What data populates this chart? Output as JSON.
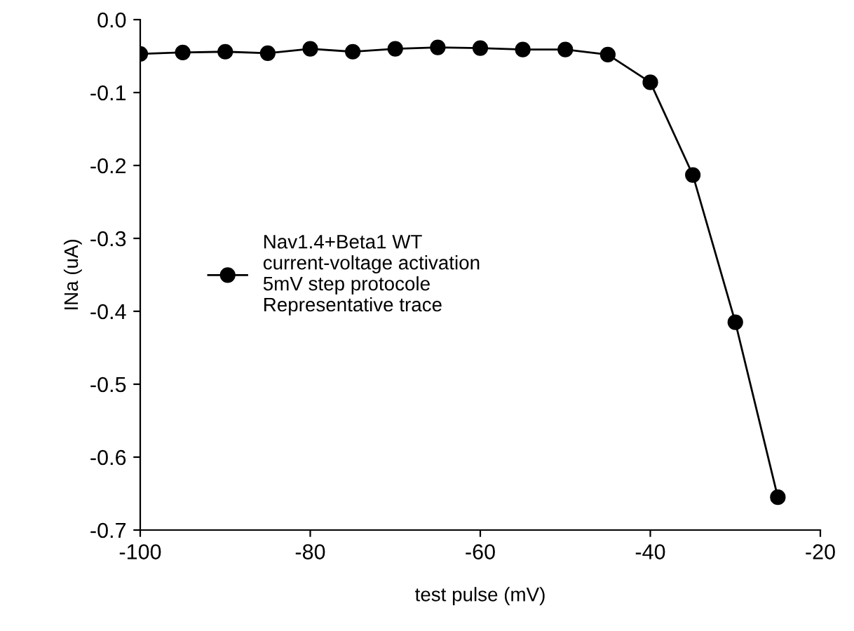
{
  "chart_data": {
    "type": "line",
    "xlabel": "test pulse (mV)",
    "ylabel": "INa (uA)",
    "x": [
      -100,
      -95,
      -90,
      -85,
      -80,
      -75,
      -70,
      -65,
      -60,
      -55,
      -50,
      -45,
      -40,
      -35,
      -30,
      -25
    ],
    "series": [
      {
        "name": "Nav1.4+Beta1 WT\ncurrent-voltage activation\n5mV step protocole\nRepresentative trace",
        "color": "#000000",
        "values": [
          -0.047,
          -0.045,
          -0.044,
          -0.046,
          -0.04,
          -0.044,
          -0.04,
          -0.038,
          -0.039,
          -0.041,
          -0.041,
          -0.048,
          -0.086,
          -0.213,
          -0.415,
          -0.655
        ]
      }
    ],
    "xlim": [
      -100,
      -20
    ],
    "xticks": [
      -100,
      -80,
      -60,
      -40,
      -20
    ],
    "ylim": [
      -0.7,
      0.0
    ],
    "yticks": [
      {
        "value": -0.7,
        "label": "-0.7"
      },
      {
        "value": -0.6,
        "label": "-0.6"
      },
      {
        "value": -0.5,
        "label": "-0.5"
      },
      {
        "value": -0.4,
        "label": "-0.4"
      },
      {
        "value": -0.3,
        "label": "-0.3"
      },
      {
        "value": -0.2,
        "label": "-0.2"
      },
      {
        "value": -0.1,
        "label": "-0.1"
      },
      {
        "value": 0.0,
        "label": "0.0"
      }
    ],
    "marker": "circle",
    "line_style": "solid",
    "legend": "center",
    "grid": false
  }
}
